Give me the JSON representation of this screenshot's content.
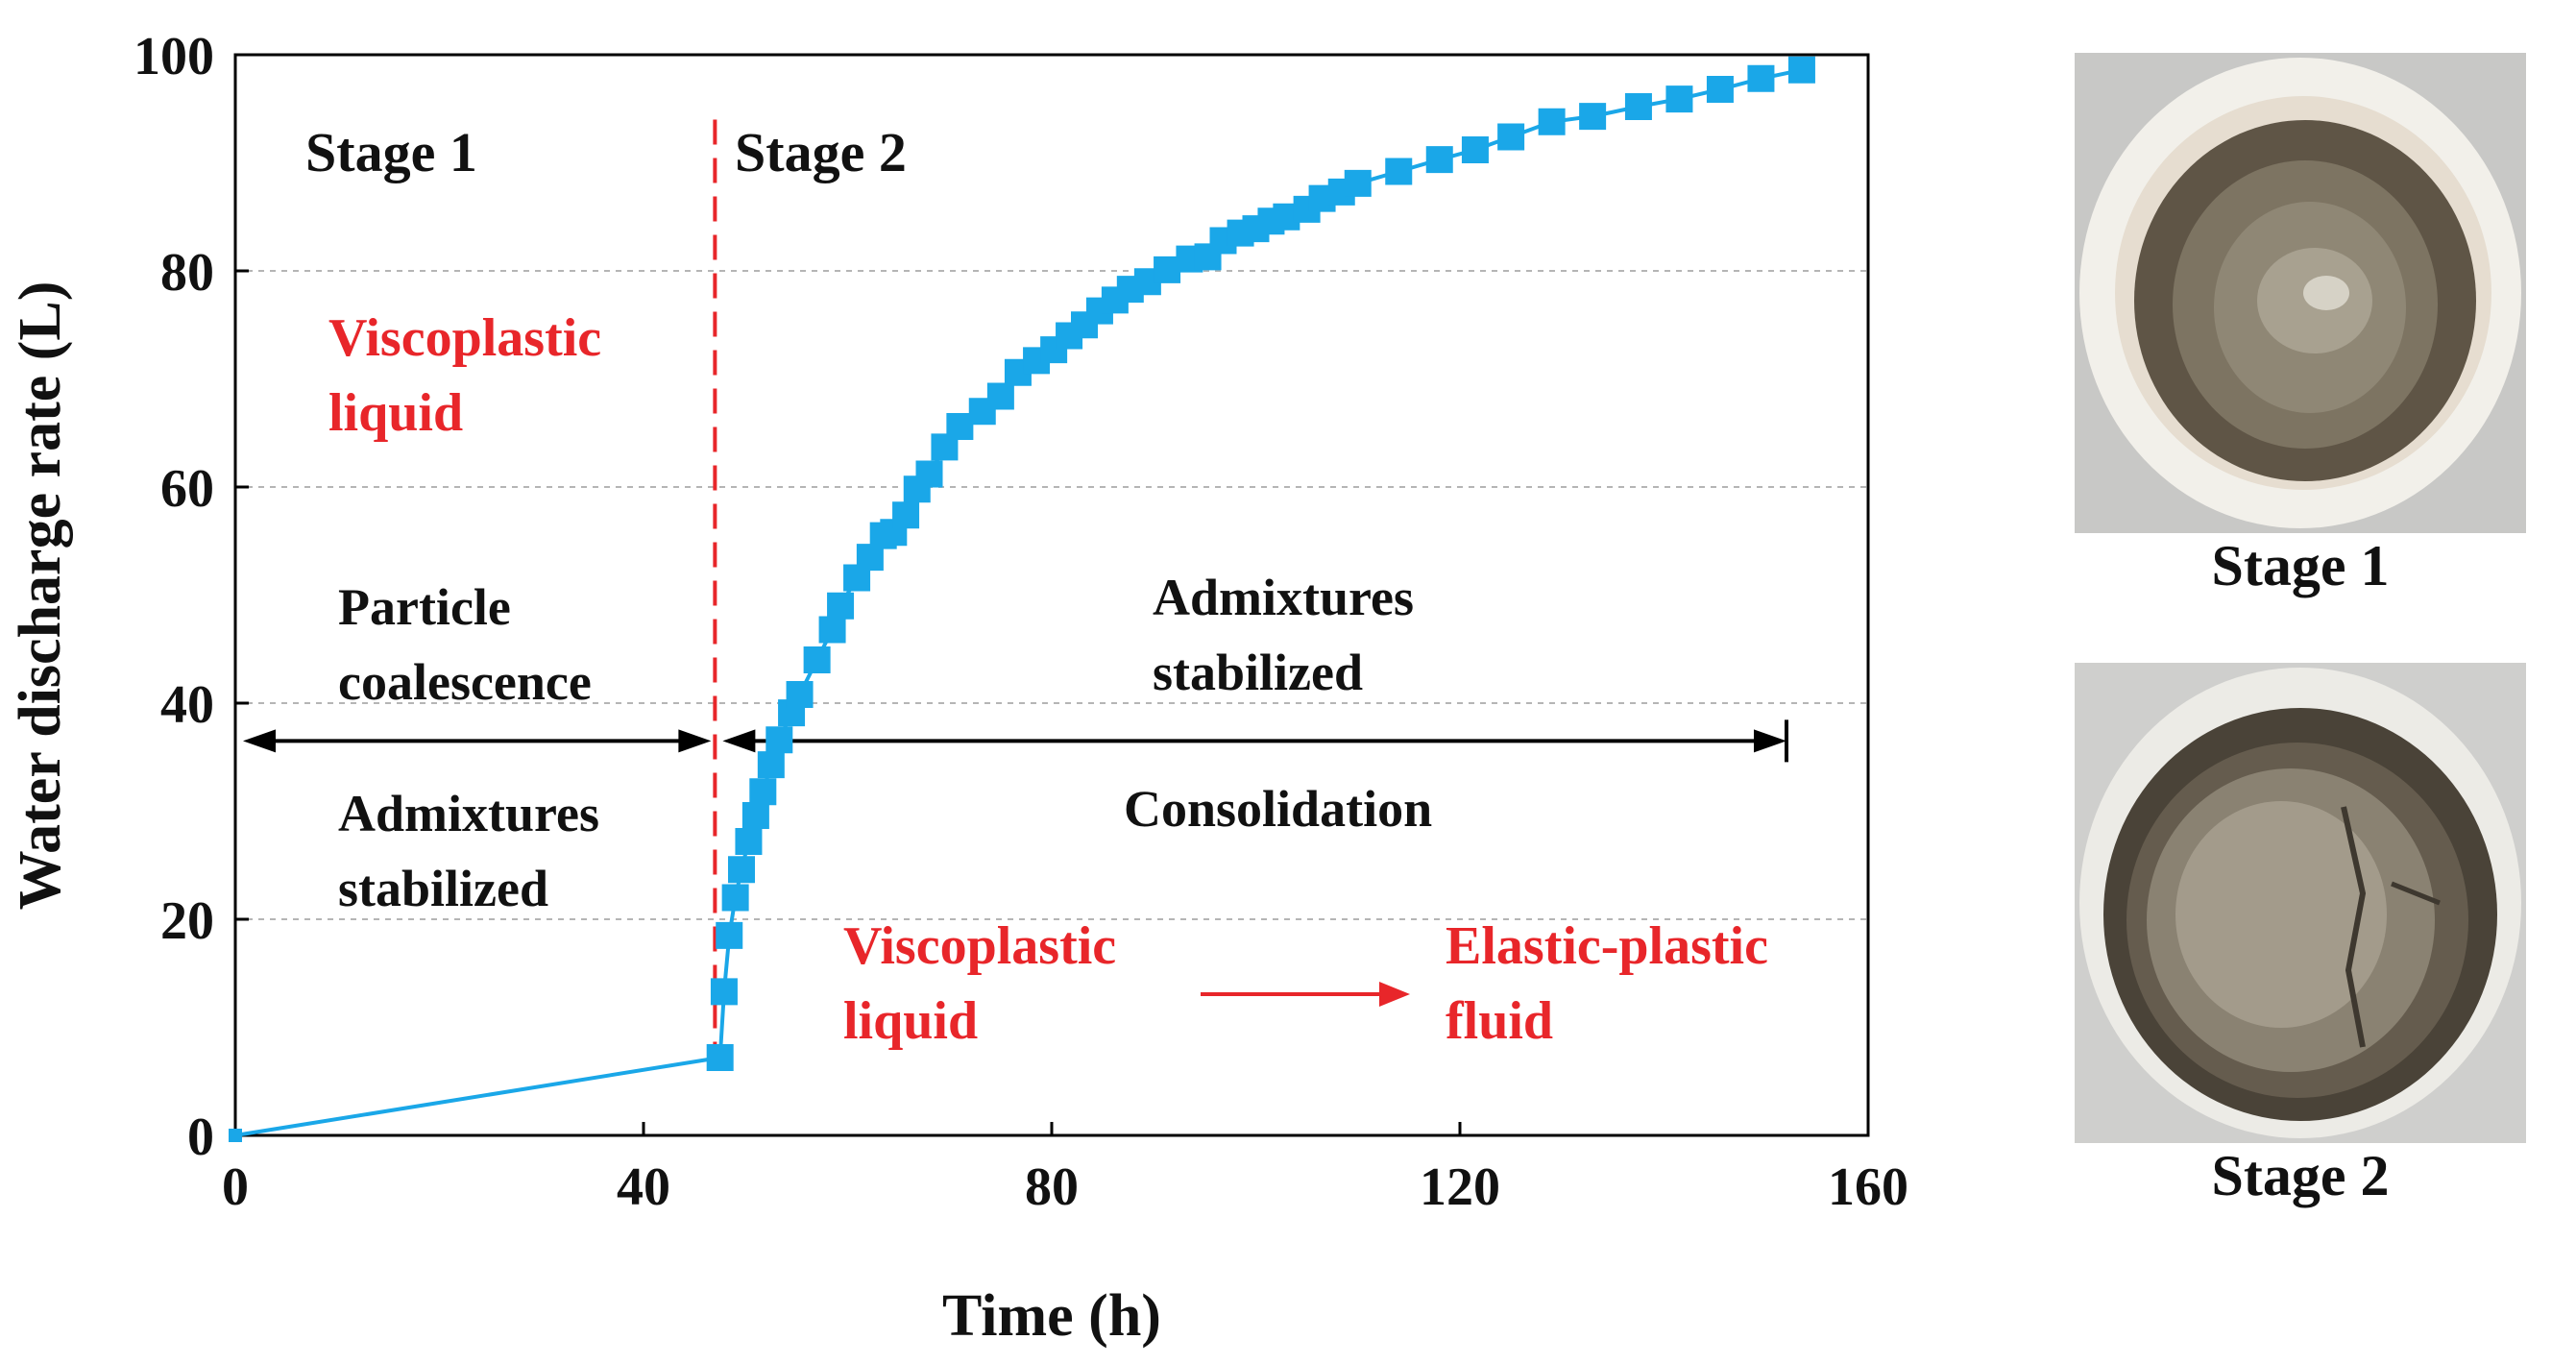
{
  "chart_data": {
    "type": "scatter",
    "xlabel": "Time (h)",
    "ylabel": "Water discharge rate (L)",
    "xlim": [
      0,
      160
    ],
    "ylim": [
      0,
      100
    ],
    "xticks": [
      0,
      40,
      80,
      120,
      160
    ],
    "yticks": [
      0,
      20,
      40,
      60,
      80,
      100
    ],
    "grid": "horizontal dashed",
    "series": [
      {
        "name": "Water discharge",
        "color": "#1aa7e8",
        "marker": "square",
        "points": [
          [
            0,
            0
          ],
          [
            47.5,
            7.2
          ],
          [
            47.9,
            13.3
          ],
          [
            48.4,
            18.5
          ],
          [
            49.0,
            22.0
          ],
          [
            49.6,
            24.6
          ],
          [
            50.3,
            27.2
          ],
          [
            51.0,
            29.6
          ],
          [
            51.7,
            31.8
          ],
          [
            52.5,
            34.3
          ],
          [
            53.3,
            36.6
          ],
          [
            54.5,
            39.1
          ],
          [
            55.3,
            40.8
          ],
          [
            57.0,
            44.0
          ],
          [
            58.5,
            46.8
          ],
          [
            59.3,
            49.0
          ],
          [
            60.9,
            51.6
          ],
          [
            62.2,
            53.5
          ],
          [
            63.5,
            55.5
          ],
          [
            64.5,
            55.8
          ],
          [
            65.7,
            57.4
          ],
          [
            66.8,
            59.8
          ],
          [
            68.0,
            61.2
          ],
          [
            69.5,
            63.7
          ],
          [
            71.0,
            65.6
          ],
          [
            73.2,
            67.0
          ],
          [
            75.0,
            68.4
          ],
          [
            76.7,
            70.6
          ],
          [
            78.5,
            71.7
          ],
          [
            80.2,
            72.7
          ],
          [
            81.7,
            74.0
          ],
          [
            83.2,
            75.0
          ],
          [
            84.7,
            76.3
          ],
          [
            86.2,
            77.3
          ],
          [
            87.7,
            78.3
          ],
          [
            89.4,
            79.0
          ],
          [
            91.3,
            80.1
          ],
          [
            93.5,
            81.1
          ],
          [
            95.3,
            81.3
          ],
          [
            96.8,
            82.8
          ],
          [
            98.5,
            83.5
          ],
          [
            100.0,
            83.9
          ],
          [
            101.5,
            84.6
          ],
          [
            103.0,
            85.0
          ],
          [
            105.0,
            85.7
          ],
          [
            106.5,
            86.7
          ],
          [
            108.4,
            87.3
          ],
          [
            110.0,
            88.1
          ],
          [
            114.0,
            89.2
          ],
          [
            118.0,
            90.3
          ],
          [
            121.5,
            91.2
          ],
          [
            125.0,
            92.4
          ],
          [
            129.0,
            93.8
          ],
          [
            133.0,
            94.3
          ],
          [
            137.5,
            95.2
          ],
          [
            141.5,
            95.9
          ],
          [
            145.5,
            96.8
          ],
          [
            149.5,
            97.8
          ],
          [
            153.5,
            98.6
          ]
        ]
      }
    ],
    "stage_divider_x": 47,
    "range_arrows": [
      {
        "from": 0,
        "to": 47,
        "y": 36.5
      },
      {
        "from": 47,
        "to": 152,
        "y": 36.5
      }
    ],
    "annotations": {
      "stage1_title": "Stage 1",
      "stage2_title": "Stage 2",
      "stage1_state_line1": "Viscoplastic",
      "stage1_state_line2": "liquid",
      "stage1_process_line1": "Particle",
      "stage1_process_line2": "coalescence",
      "stage1_admix_line1": "Admixtures",
      "stage1_admix_line2": "stabilized",
      "stage2_admix_line1": "Admixtures",
      "stage2_admix_line2": "stabilized",
      "stage2_process": "Consolidation",
      "stage2_from_line1": "Viscoplastic",
      "stage2_from_line2": "liquid",
      "stage2_to_line1": "Elastic-plastic",
      "stage2_to_line2": "fluid"
    },
    "colors": {
      "axis": "#000000",
      "grid": "#b5b5b5",
      "divider": "#e8262a",
      "highlight_text": "#e8262a",
      "text": "#111111"
    }
  },
  "photos": {
    "stage1_label": "Stage 1",
    "stage2_label": "Stage 2"
  }
}
